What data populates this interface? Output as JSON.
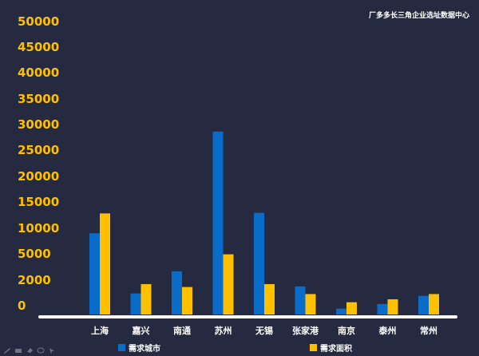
{
  "source_label": "厂多多长三角企业选址数据中心",
  "colors": {
    "background": "#252a40",
    "series1": "#0a6cc9",
    "series2": "#ffc000",
    "axis_text": "#ffc000",
    "category_text": "#ffffff"
  },
  "chart_data": {
    "type": "bar",
    "title": "",
    "xlabel": "",
    "ylabel": "",
    "categories": [
      "上海",
      "嘉兴",
      "南通",
      "苏州",
      "无锡",
      "张家港",
      "南京",
      "泰州",
      "常州"
    ],
    "series": [
      {
        "name": "需求城市",
        "values": [
          13900,
          3600,
          7400,
          31300,
          17400,
          4800,
          1000,
          1800,
          3200
        ]
      },
      {
        "name": "需求面积",
        "values": [
          17300,
          5200,
          4700,
          10300,
          5200,
          3500,
          2100,
          2600,
          3500
        ]
      }
    ],
    "yticks": [
      "0",
      "2000",
      "5000",
      "10000",
      "15000",
      "20000",
      "25000",
      "30000",
      "35000",
      "40000",
      "45000",
      "50000"
    ],
    "ylim": [
      0,
      50000
    ],
    "grid": false,
    "legend_position": "bottom"
  },
  "legend": [
    {
      "label": "需求城市",
      "color": "#0a6cc9"
    },
    {
      "label": "需求面积",
      "color": "#ffc000"
    }
  ],
  "toolbar_icons": [
    "pen-icon",
    "highlighter-icon",
    "eraser-icon",
    "lasso-icon",
    "pointer-icon"
  ]
}
